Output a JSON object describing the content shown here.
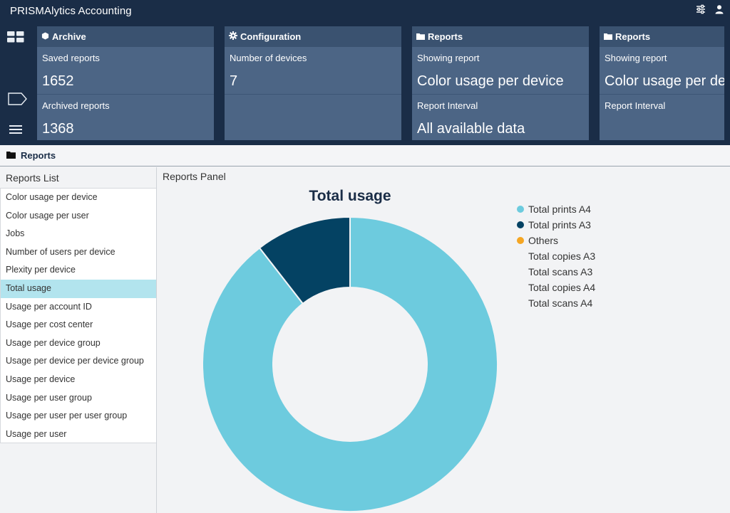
{
  "app": {
    "title": "PRISMAlytics Accounting"
  },
  "tiles": [
    {
      "header": "Archive",
      "icon": "cube-icon",
      "sections": [
        {
          "label": "Saved reports",
          "value": "1652"
        },
        {
          "label": "Archived reports",
          "value": "1368"
        }
      ]
    },
    {
      "header": "Configuration",
      "icon": "gear-icon",
      "sections": [
        {
          "label": "Number of devices",
          "value": "7"
        }
      ]
    },
    {
      "header": "Reports",
      "icon": "folder-icon",
      "sections": [
        {
          "label": "Showing report",
          "value": "Color usage per device"
        },
        {
          "label": "Report Interval",
          "value": "All available data"
        }
      ]
    },
    {
      "header": "Reports",
      "icon": "folder-icon",
      "sections": [
        {
          "label": "Showing report",
          "value": "Color usage per devi"
        },
        {
          "label": "Report Interval",
          "value": ""
        }
      ]
    }
  ],
  "breadcrumb": {
    "label": "Reports"
  },
  "reports_list": {
    "title": "Reports List",
    "items": [
      "Color usage per device",
      "Color usage per user",
      "Jobs",
      "Number of users per device",
      "Plexity per device",
      "Total usage",
      "Usage per account ID",
      "Usage per cost center",
      "Usage per device group",
      "Usage per device per device group",
      "Usage per device",
      "Usage per user group",
      "Usage per user per user group",
      "Usage per user"
    ],
    "selected_index": 5
  },
  "panel": {
    "title": "Reports Panel"
  },
  "chart_data": {
    "type": "pie",
    "title": "Total usage",
    "donut": true,
    "legend_position": "right",
    "series": [
      {
        "name": "Total prints A4",
        "value": 89.5,
        "color": "#6dcbde"
      },
      {
        "name": "Total prints A3",
        "value": 10.5,
        "color": "#044263"
      },
      {
        "name": "Others",
        "value": 0,
        "color": "#f5a623"
      },
      {
        "name": "Total copies A3",
        "value": 0,
        "color": ""
      },
      {
        "name": "Total scans A3",
        "value": 0,
        "color": ""
      },
      {
        "name": "Total copies A4",
        "value": 0,
        "color": ""
      },
      {
        "name": "Total scans A4",
        "value": 0,
        "color": ""
      }
    ]
  }
}
